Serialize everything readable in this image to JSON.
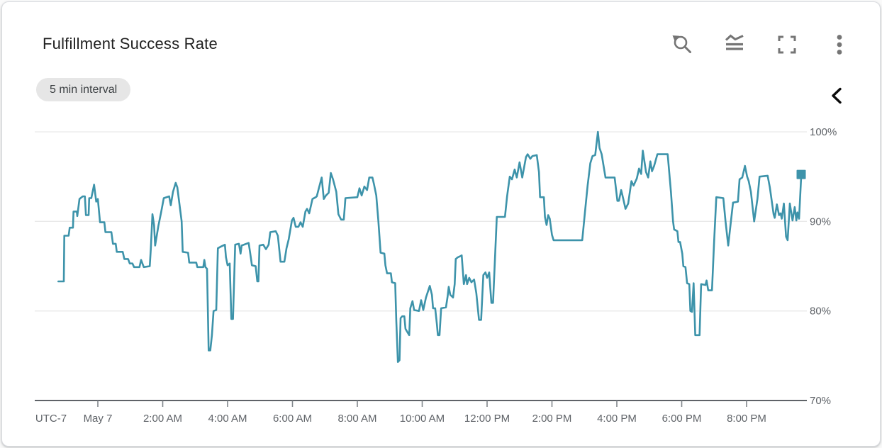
{
  "card": {
    "title": "Fulfillment Success Rate",
    "interval_chip": "5 min interval"
  },
  "toolbar": {
    "icons": [
      "reset-zoom-icon",
      "chart-mode-icon",
      "fullscreen-icon",
      "more-options-icon"
    ],
    "icon_color": "#757575"
  },
  "side_panel": {
    "collapse_icon": "chevron-left-icon"
  },
  "chart_data": {
    "type": "line",
    "title": "Fulfillment Success Rate",
    "sample_interval": "5 min",
    "line_color": "#3D93AA",
    "grid": "horizontal",
    "end_marker": "square",
    "x_axis": {
      "timezone_label": "UTC-7",
      "unit": "minutes since May 7 00:00 (UTC-7)",
      "tick_labels": [
        "May 7",
        "2:00 AM",
        "4:00 AM",
        "6:00 AM",
        "8:00 AM",
        "10:00 AM",
        "12:00 PM",
        "2:00 PM",
        "4:00 PM",
        "6:00 PM",
        "8:00 PM"
      ],
      "tick_minutes": [
        0,
        120,
        240,
        360,
        480,
        600,
        720,
        840,
        960,
        1080,
        1200
      ],
      "range_minutes": [
        -78,
        1308
      ]
    },
    "y_axis": {
      "unit": "percent",
      "position": "right",
      "tick_labels": [
        "100%",
        "90%",
        "80%",
        "70%"
      ],
      "tick_values": [
        100,
        90,
        80,
        70
      ],
      "range": [
        70,
        100
      ]
    },
    "series": [
      {
        "name": "Fulfillment Success Rate",
        "points": [
          [
            -73,
            83.3
          ],
          [
            -63,
            83.3
          ],
          [
            -62,
            88.4
          ],
          [
            -54,
            88.4
          ],
          [
            -52,
            89.3
          ],
          [
            -46,
            89.3
          ],
          [
            -45,
            91.1
          ],
          [
            -39,
            91.1
          ],
          [
            -38,
            90.6
          ],
          [
            -34,
            92.5
          ],
          [
            -28,
            92.8
          ],
          [
            -24,
            92.8
          ],
          [
            -22,
            90.7
          ],
          [
            -17,
            90.7
          ],
          [
            -16,
            92.6
          ],
          [
            -12,
            92.6
          ],
          [
            -7,
            94.1
          ],
          [
            -3,
            92.2
          ],
          [
            0,
            92.5
          ],
          [
            4,
            89.9
          ],
          [
            12,
            89.9
          ],
          [
            14,
            88.8
          ],
          [
            25,
            88.8
          ],
          [
            28,
            87.5
          ],
          [
            33,
            87.5
          ],
          [
            35,
            86.6
          ],
          [
            46,
            86.6
          ],
          [
            49,
            85.8
          ],
          [
            56,
            85.8
          ],
          [
            59,
            85.3
          ],
          [
            64,
            85.3
          ],
          [
            67,
            84.9
          ],
          [
            77,
            84.9
          ],
          [
            80,
            85.7
          ],
          [
            85,
            84.9
          ],
          [
            96,
            85.0
          ],
          [
            98,
            86.9
          ],
          [
            101,
            90.8
          ],
          [
            104,
            89.6
          ],
          [
            106,
            87.3
          ],
          [
            112,
            89.5
          ],
          [
            117,
            91.0
          ],
          [
            122,
            92.6
          ],
          [
            132,
            92.8
          ],
          [
            135,
            91.8
          ],
          [
            139,
            93.3
          ],
          [
            144,
            94.3
          ],
          [
            147,
            93.8
          ],
          [
            155,
            90.0
          ],
          [
            157,
            86.6
          ],
          [
            167,
            86.5
          ],
          [
            169,
            85.4
          ],
          [
            182,
            85.4
          ],
          [
            184,
            84.9
          ],
          [
            195,
            84.9
          ],
          [
            197,
            85.7
          ],
          [
            199,
            84.9
          ],
          [
            202,
            84.7
          ],
          [
            205,
            75.6
          ],
          [
            208,
            75.6
          ],
          [
            211,
            77.3
          ],
          [
            214,
            80.0
          ],
          [
            219,
            80.1
          ],
          [
            222,
            87.0
          ],
          [
            228,
            87.2
          ],
          [
            235,
            87.4
          ],
          [
            237,
            86.0
          ],
          [
            240,
            85.1
          ],
          [
            244,
            85.3
          ],
          [
            247,
            79.1
          ],
          [
            250,
            79.1
          ],
          [
            254,
            87.4
          ],
          [
            261,
            87.5
          ],
          [
            264,
            86.4
          ],
          [
            266,
            87.3
          ],
          [
            279,
            87.6
          ],
          [
            282,
            86.4
          ],
          [
            285,
            85.1
          ],
          [
            292,
            85.0
          ],
          [
            295,
            83.3
          ],
          [
            297,
            83.3
          ],
          [
            299,
            87.3
          ],
          [
            306,
            87.4
          ],
          [
            311,
            86.9
          ],
          [
            316,
            87.4
          ],
          [
            319,
            88.8
          ],
          [
            329,
            88.9
          ],
          [
            333,
            88.4
          ],
          [
            338,
            85.5
          ],
          [
            345,
            85.5
          ],
          [
            349,
            87.0
          ],
          [
            353,
            88.0
          ],
          [
            359,
            90.1
          ],
          [
            362,
            90.4
          ],
          [
            366,
            89.4
          ],
          [
            371,
            89.4
          ],
          [
            375,
            89.9
          ],
          [
            379,
            89.4
          ],
          [
            384,
            91.1
          ],
          [
            387,
            91.4
          ],
          [
            391,
            90.9
          ],
          [
            397,
            92.5
          ],
          [
            403,
            92.7
          ],
          [
            405,
            92.8
          ],
          [
            408,
            93.5
          ],
          [
            414,
            94.9
          ],
          [
            418,
            92.5
          ],
          [
            422,
            92.9
          ],
          [
            427,
            93.2
          ],
          [
            431,
            95.4
          ],
          [
            435,
            94.7
          ],
          [
            441,
            93.3
          ],
          [
            445,
            90.8
          ],
          [
            450,
            90.2
          ],
          [
            455,
            90.2
          ],
          [
            458,
            92.6
          ],
          [
            480,
            92.7
          ],
          [
            484,
            93.7
          ],
          [
            488,
            92.9
          ],
          [
            493,
            93.9
          ],
          [
            498,
            93.5
          ],
          [
            502,
            94.9
          ],
          [
            508,
            94.9
          ],
          [
            511,
            94.1
          ],
          [
            515,
            92.9
          ],
          [
            519,
            90.0
          ],
          [
            523,
            86.5
          ],
          [
            530,
            86.4
          ],
          [
            532,
            85.1
          ],
          [
            535,
            84.2
          ],
          [
            542,
            84.2
          ],
          [
            544,
            83.2
          ],
          [
            550,
            83.1
          ],
          [
            552,
            79.0
          ],
          [
            555,
            74.3
          ],
          [
            558,
            74.5
          ],
          [
            560,
            79.2
          ],
          [
            563,
            79.4
          ],
          [
            567,
            79.4
          ],
          [
            569,
            78.0
          ],
          [
            576,
            77.3
          ],
          [
            578,
            80.3
          ],
          [
            582,
            81.1
          ],
          [
            585,
            80.1
          ],
          [
            594,
            80.0
          ],
          [
            598,
            81.2
          ],
          [
            602,
            80.1
          ],
          [
            607,
            81.5
          ],
          [
            614,
            82.8
          ],
          [
            618,
            81.8
          ],
          [
            620,
            80.3
          ],
          [
            624,
            80.3
          ],
          [
            627,
            78.6
          ],
          [
            629,
            77.3
          ],
          [
            632,
            77.3
          ],
          [
            635,
            80.3
          ],
          [
            644,
            80.4
          ],
          [
            647,
            81.6
          ],
          [
            649,
            82.7
          ],
          [
            652,
            81.8
          ],
          [
            657,
            81.5
          ],
          [
            660,
            83.0
          ],
          [
            662,
            85.8
          ],
          [
            666,
            86.0
          ],
          [
            670,
            86.1
          ],
          [
            673,
            86.2
          ],
          [
            677,
            83.0
          ],
          [
            681,
            84.0
          ],
          [
            683,
            83.0
          ],
          [
            687,
            83.7
          ],
          [
            691,
            83.2
          ],
          [
            696,
            83.5
          ],
          [
            700,
            82.0
          ],
          [
            705,
            79.0
          ],
          [
            709,
            79.0
          ],
          [
            713,
            84.0
          ],
          [
            717,
            84.3
          ],
          [
            720,
            83.7
          ],
          [
            724,
            84.3
          ],
          [
            726,
            82.5
          ],
          [
            728,
            80.9
          ],
          [
            731,
            80.9
          ],
          [
            738,
            90.5
          ],
          [
            753,
            90.5
          ],
          [
            757,
            92.8
          ],
          [
            762,
            95.0
          ],
          [
            766,
            94.7
          ],
          [
            771,
            95.8
          ],
          [
            775,
            94.9
          ],
          [
            780,
            96.6
          ],
          [
            785,
            94.9
          ],
          [
            792,
            97.2
          ],
          [
            795,
            97.5
          ],
          [
            800,
            97.0
          ],
          [
            804,
            97.3
          ],
          [
            812,
            97.4
          ],
          [
            816,
            95.5
          ],
          [
            818,
            92.7
          ],
          [
            825,
            92.7
          ],
          [
            827,
            90.5
          ],
          [
            830,
            89.6
          ],
          [
            833,
            90.7
          ],
          [
            836,
            90.3
          ],
          [
            840,
            88.5
          ],
          [
            843,
            87.9
          ],
          [
            896,
            87.9
          ],
          [
            901,
            91.0
          ],
          [
            906,
            94.0
          ],
          [
            911,
            96.5
          ],
          [
            915,
            97.3
          ],
          [
            920,
            97.4
          ],
          [
            925,
            100.0
          ],
          [
            928,
            98.2
          ],
          [
            932,
            97.5
          ],
          [
            939,
            94.9
          ],
          [
            956,
            94.9
          ],
          [
            961,
            92.3
          ],
          [
            964,
            92.3
          ],
          [
            968,
            93.5
          ],
          [
            972,
            92.5
          ],
          [
            976,
            91.4
          ],
          [
            981,
            92.0
          ],
          [
            987,
            94.5
          ],
          [
            991,
            94.0
          ],
          [
            997,
            94.8
          ],
          [
            1001,
            95.9
          ],
          [
            1005,
            95.3
          ],
          [
            1008,
            97.9
          ],
          [
            1014,
            95.5
          ],
          [
            1018,
            94.9
          ],
          [
            1022,
            96.7
          ],
          [
            1025,
            95.6
          ],
          [
            1029,
            96.2
          ],
          [
            1035,
            97.5
          ],
          [
            1054,
            97.5
          ],
          [
            1060,
            93.3
          ],
          [
            1064,
            90.0
          ],
          [
            1066,
            89.1
          ],
          [
            1072,
            88.9
          ],
          [
            1074,
            87.7
          ],
          [
            1077,
            87.7
          ],
          [
            1081,
            86.4
          ],
          [
            1083,
            85.0
          ],
          [
            1087,
            84.9
          ],
          [
            1090,
            83.1
          ],
          [
            1094,
            83.0
          ],
          [
            1096,
            80.0
          ],
          [
            1099,
            79.9
          ],
          [
            1102,
            83.1
          ],
          [
            1105,
            77.3
          ],
          [
            1113,
            77.3
          ],
          [
            1116,
            83.0
          ],
          [
            1124,
            82.9
          ],
          [
            1126,
            83.4
          ],
          [
            1129,
            82.3
          ],
          [
            1136,
            82.3
          ],
          [
            1140,
            87.9
          ],
          [
            1144,
            92.7
          ],
          [
            1157,
            92.6
          ],
          [
            1161,
            90.0
          ],
          [
            1166,
            87.3
          ],
          [
            1171,
            90.0
          ],
          [
            1175,
            92.1
          ],
          [
            1184,
            92.2
          ],
          [
            1187,
            94.7
          ],
          [
            1192,
            94.9
          ],
          [
            1197,
            96.2
          ],
          [
            1201,
            95.0
          ],
          [
            1204,
            94.5
          ],
          [
            1208,
            93.3
          ],
          [
            1214,
            90.0
          ],
          [
            1220,
            92.5
          ],
          [
            1224,
            95.0
          ],
          [
            1239,
            95.1
          ],
          [
            1243,
            93.8
          ],
          [
            1246,
            92.5
          ],
          [
            1250,
            90.8
          ],
          [
            1252,
            90.4
          ],
          [
            1256,
            91.9
          ],
          [
            1260,
            90.7
          ],
          [
            1263,
            90.9
          ],
          [
            1265,
            90.3
          ],
          [
            1269,
            92.0
          ],
          [
            1273,
            88.3
          ],
          [
            1276,
            87.9
          ],
          [
            1280,
            92.0
          ],
          [
            1285,
            90.1
          ],
          [
            1289,
            91.6
          ],
          [
            1292,
            90.1
          ],
          [
            1294,
            91.0
          ],
          [
            1297,
            90.3
          ],
          [
            1301,
            95.0
          ]
        ]
      }
    ]
  }
}
